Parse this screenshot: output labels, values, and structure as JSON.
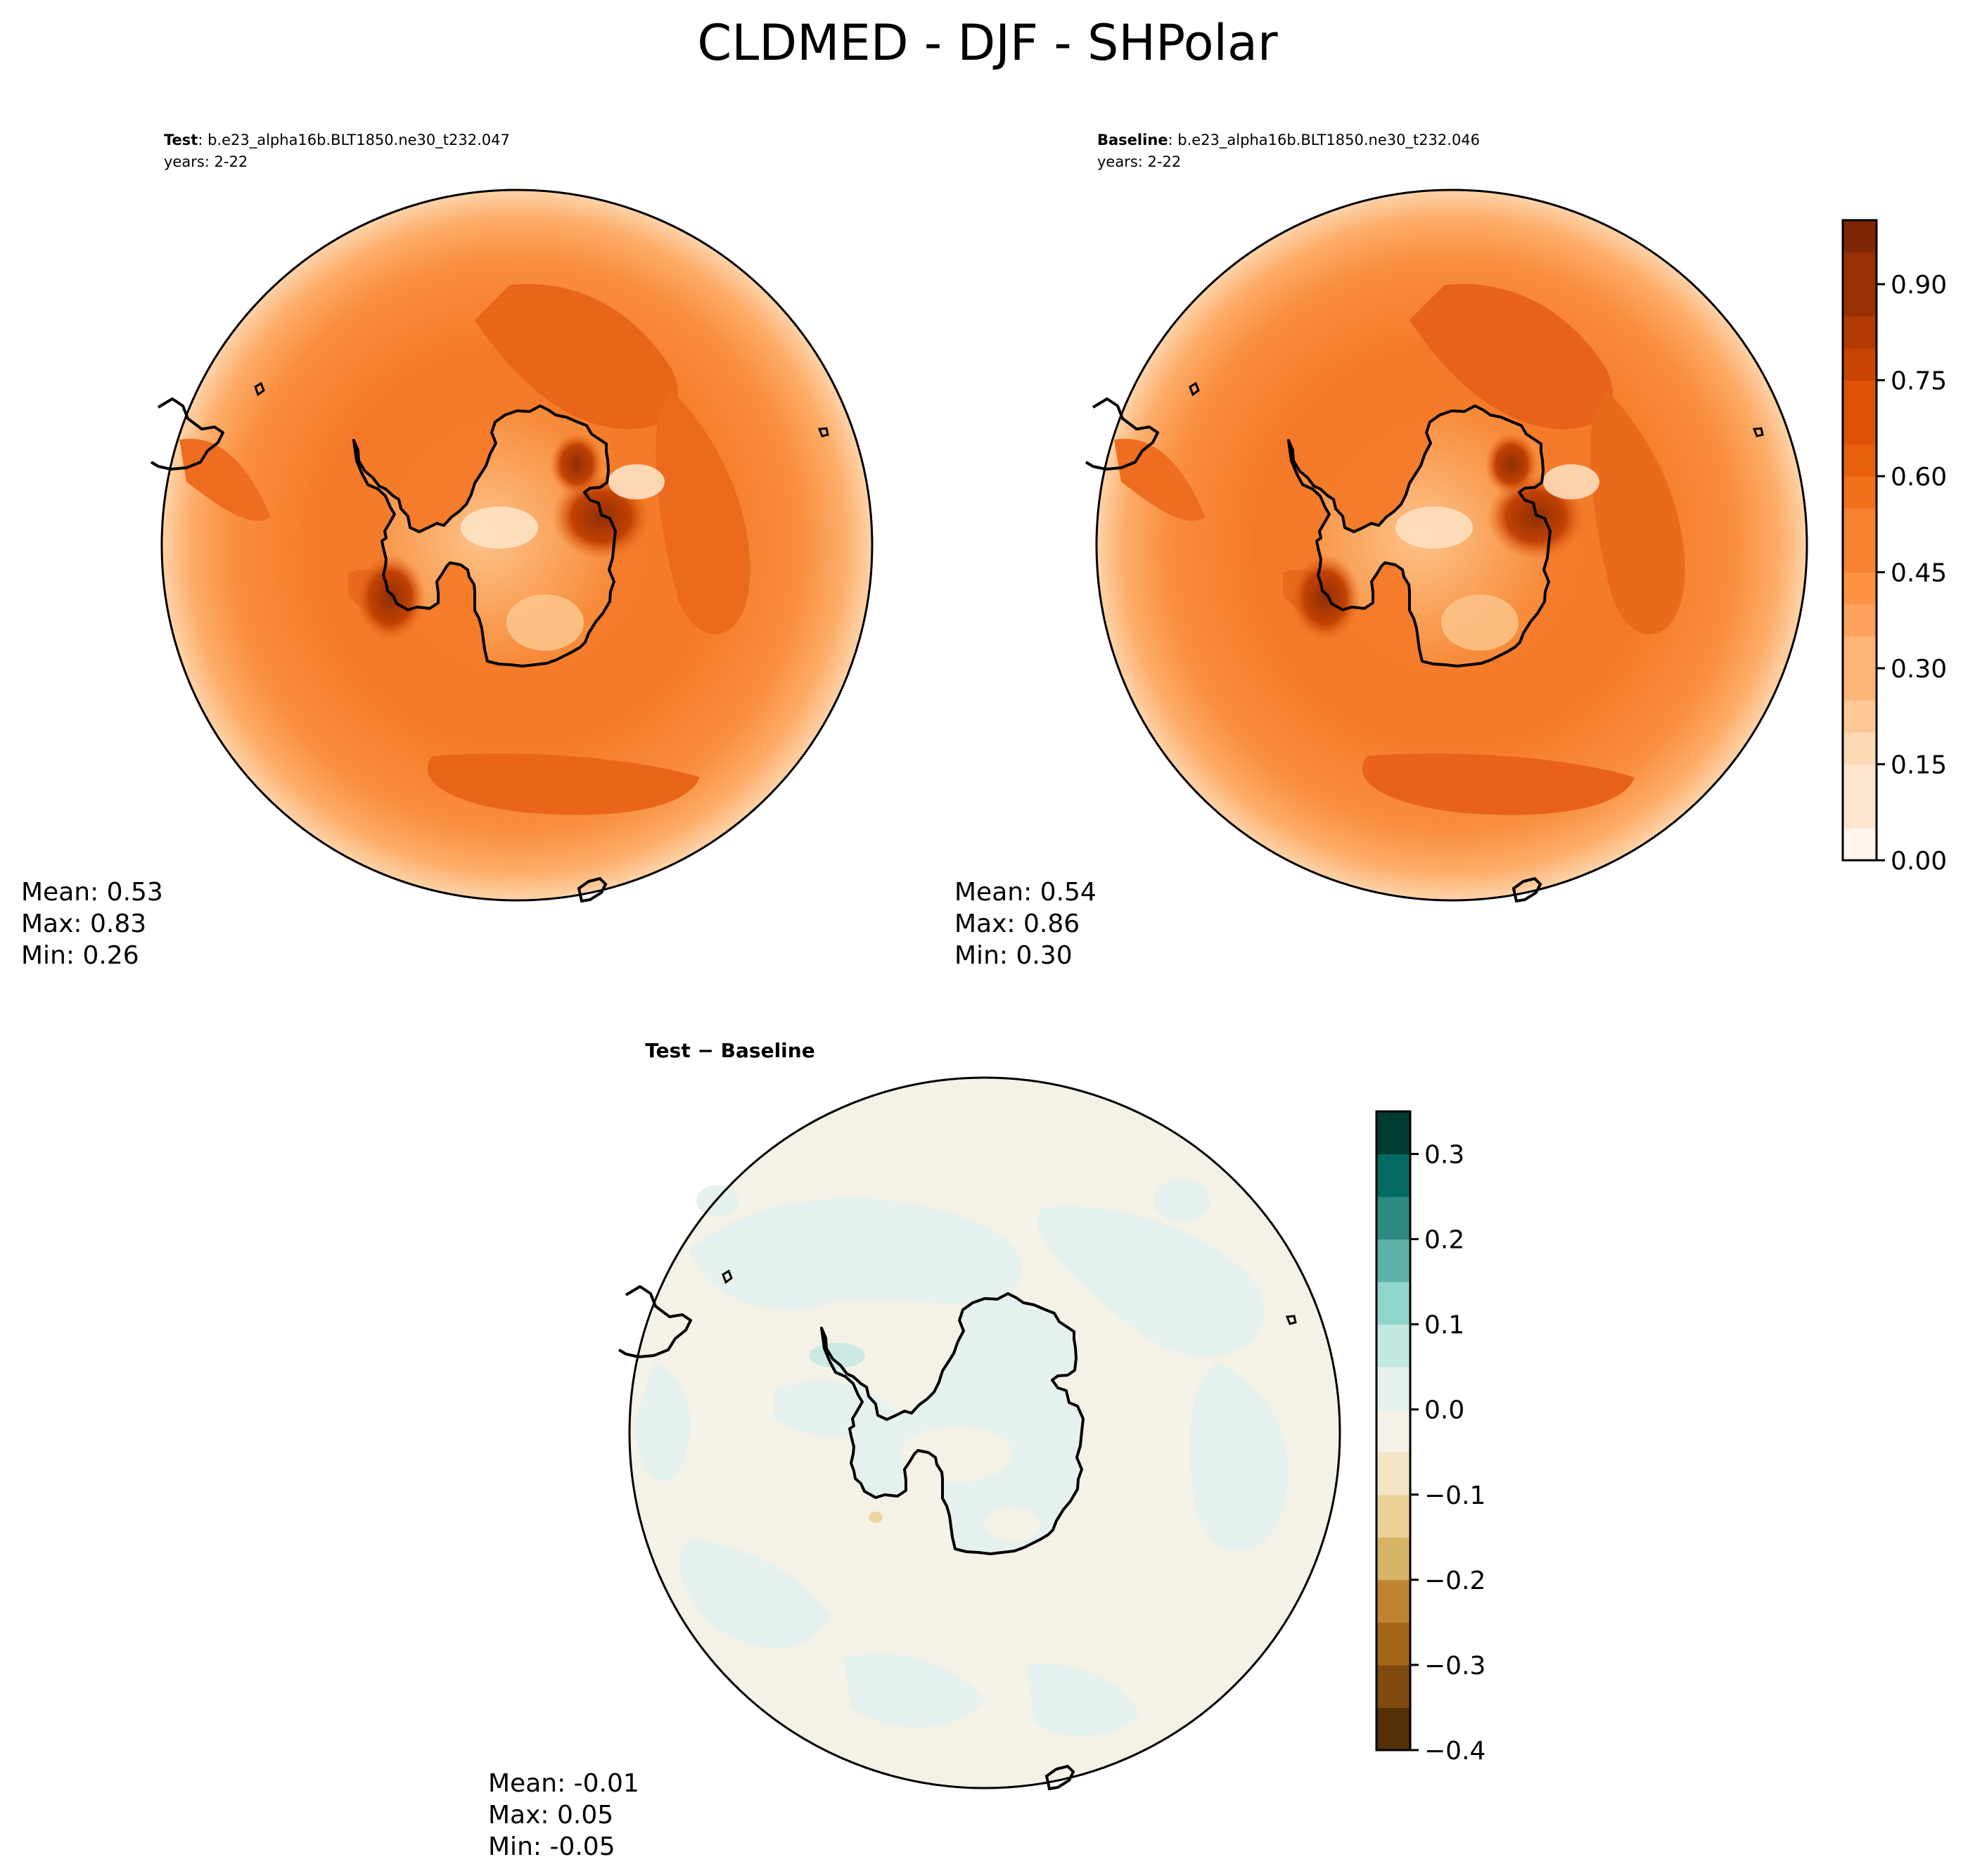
{
  "figure": {
    "title": "CLDMED - DJF - SHPolar"
  },
  "panels": {
    "test": {
      "label": "Test",
      "case": ": b.e23_alpha16b.BLT1850.ne30_t232.047",
      "years": "years: 2-22",
      "stats": {
        "mean": "Mean:  0.53",
        "max": "Max:  0.83",
        "min": "Min:  0.26"
      }
    },
    "baseline": {
      "label": "Baseline",
      "case": ": b.e23_alpha16b.BLT1850.ne30_t232.046",
      "years": "years: 2-22",
      "stats": {
        "mean": "Mean:  0.54",
        "max": "Max:  0.86",
        "min": "Min:  0.30"
      }
    },
    "diff": {
      "title": "Test − Baseline",
      "stats": {
        "mean": "Mean: -0.01",
        "max": "Max:  0.05",
        "min": "Min: -0.05"
      }
    }
  },
  "colors": {
    "cmap_main": [
      "#fff5eb",
      "#fee6ce",
      "#fdd9b5",
      "#fdc895",
      "#fdb577",
      "#fda25c",
      "#fd9243",
      "#f98132",
      "#f3701b",
      "#e8600e",
      "#dd5207",
      "#c94402",
      "#b13a03",
      "#983003",
      "#7f2704"
    ],
    "cmap_diff": [
      "#543005",
      "#7e4a0e",
      "#a26516",
      "#bf8432",
      "#d6b466",
      "#e9d198",
      "#f4e6c4",
      "#f4f1e6",
      "#e4f1ef",
      "#c2e8e2",
      "#8fd5c9",
      "#5fb2a7",
      "#2c8a82",
      "#046960",
      "#003c30"
    ],
    "ocean_main": "#f57e2c",
    "ocean_main_dark": "#e9651a",
    "ocean_main_light": "#fda55f",
    "land_light": "#fdb87a",
    "land_dark": "#a8390a",
    "diff_field": "#f4f1e6",
    "diff_blob": "#e4f1ef"
  },
  "chart_data": {
    "type": "polar-contour",
    "projection": "south-polar-stereographic",
    "variable": "CLDMED",
    "season": "DJF",
    "region": "SHPolar",
    "colorbar_main": {
      "vmin": 0.0,
      "vmax": 1.0,
      "levels": [
        0.0,
        0.05,
        0.1,
        0.15,
        0.2,
        0.25,
        0.3,
        0.35,
        0.4,
        0.45,
        0.5,
        0.55,
        0.6,
        0.65,
        0.7,
        0.75,
        0.8,
        0.85,
        0.9,
        0.95,
        1.0
      ],
      "ticks": [
        0.0,
        0.15,
        0.3,
        0.45,
        0.6,
        0.75,
        0.9
      ],
      "tick_labels": [
        "0.00",
        "0.15",
        "0.30",
        "0.45",
        "0.60",
        "0.75",
        "0.90"
      ]
    },
    "colorbar_diff": {
      "vmin": -0.4,
      "vmax": 0.35,
      "levels": [
        -0.4,
        -0.35,
        -0.3,
        -0.25,
        -0.2,
        -0.15,
        -0.1,
        -0.05,
        0.0,
        0.05,
        0.1,
        0.15,
        0.2,
        0.25,
        0.3,
        0.35
      ],
      "ticks": [
        -0.4,
        -0.3,
        -0.2,
        -0.1,
        0.0,
        0.1,
        0.2,
        0.3
      ],
      "tick_labels": [
        "−0.4",
        "−0.3",
        "−0.2",
        "−0.1",
        "0.0",
        "0.1",
        "0.2",
        "0.3"
      ]
    },
    "panels": [
      {
        "name": "Test",
        "mean": 0.53,
        "max": 0.83,
        "min": 0.26
      },
      {
        "name": "Baseline",
        "mean": 0.54,
        "max": 0.86,
        "min": 0.3
      },
      {
        "name": "Test − Baseline",
        "mean": -0.01,
        "max": 0.05,
        "min": -0.05
      }
    ]
  }
}
